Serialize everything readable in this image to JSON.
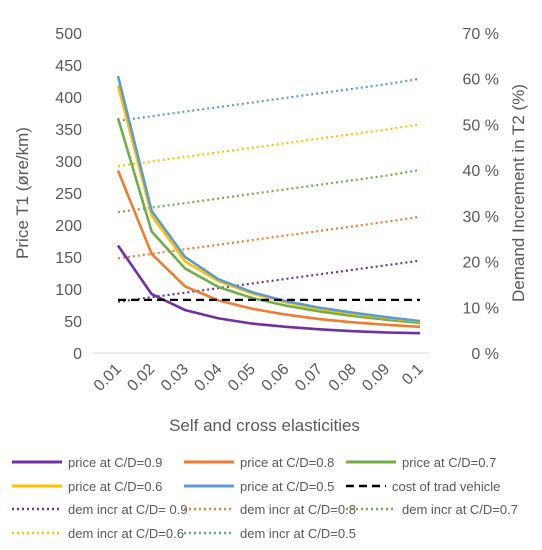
{
  "chart_data": {
    "type": "line",
    "x": [
      "0.01",
      "0.02",
      "0.03",
      "0.04",
      "0.05",
      "0.06",
      "0.07",
      "0.08",
      "0.09",
      "0.1"
    ],
    "xlabel": "Self and cross elasticities",
    "ylabel_left": "Price T1 (øre/km)",
    "ylabel_right": "Demand Increment in T2 (%)",
    "ylim_left": [
      0,
      500
    ],
    "ylim_right": [
      0,
      70
    ],
    "yticks_left": [
      "0",
      "50",
      "100",
      "150",
      "200",
      "250",
      "300",
      "350",
      "400",
      "450",
      "500"
    ],
    "yticks_right": [
      "0 %",
      "10 %",
      "20 %",
      "30 %",
      "40 %",
      "50 %",
      "60 %",
      "70 %"
    ],
    "grid": false,
    "legend_position": "bottom",
    "series": [
      {
        "name": "price at C/D=0.9",
        "axis": "left",
        "style": "solid",
        "color": "#7030A0",
        "values": [
          168,
          92,
          67,
          54,
          46,
          41,
          37,
          34,
          32,
          31
        ]
      },
      {
        "name": "price at C/D=0.8",
        "axis": "left",
        "style": "solid",
        "color": "#ED7D31",
        "values": [
          285,
          155,
          104,
          82,
          69,
          60,
          53,
          48,
          44,
          41
        ]
      },
      {
        "name": "price at C/D=0.7",
        "axis": "left",
        "style": "solid",
        "color": "#70AD47",
        "values": [
          367,
          190,
          132,
          103,
          86,
          74,
          65,
          58,
          52,
          47
        ]
      },
      {
        "name": "price at C/D=0.6",
        "axis": "left",
        "style": "solid",
        "color": "#FFC000",
        "values": [
          418,
          215,
          143,
          112,
          93,
          79,
          69,
          61,
          55,
          49
        ]
      },
      {
        "name": "price at C/D=0.5",
        "axis": "left",
        "style": "solid",
        "color": "#5B9BD5",
        "values": [
          433,
          222,
          150,
          115,
          95,
          81,
          71,
          63,
          56,
          50
        ]
      },
      {
        "name": "cost of trad vehicle",
        "axis": "left",
        "style": "dashed",
        "color": "#000000",
        "values": [
          83,
          83,
          83,
          83,
          83,
          83,
          83,
          83,
          83,
          83
        ]
      },
      {
        "name": "dem incr at C/D= 0.9",
        "axis": "right",
        "style": "dotted",
        "color": "#7030A0",
        "values": [
          11.2,
          12.2,
          13.2,
          14.2,
          15.2,
          16.2,
          17.2,
          18.2,
          19.2,
          20.2
        ]
      },
      {
        "name": "dem incr at C/D=0.8",
        "axis": "right",
        "style": "dotted",
        "color": "#ED7D31",
        "values": [
          20.7,
          21.7,
          22.7,
          23.7,
          24.7,
          25.7,
          26.7,
          27.7,
          28.7,
          29.8
        ]
      },
      {
        "name": "dem incr at C/D=0.7",
        "axis": "right",
        "style": "dotted",
        "color": "#70AD47",
        "values": [
          30.8,
          31.8,
          32.8,
          33.8,
          34.8,
          35.8,
          36.8,
          37.8,
          38.8,
          40.0
        ]
      },
      {
        "name": "dem incr at C/D=0.6",
        "axis": "right",
        "style": "dotted",
        "color": "#FFC000",
        "values": [
          40.9,
          41.9,
          42.9,
          43.9,
          44.9,
          45.9,
          46.9,
          47.9,
          48.9,
          50.0
        ]
      },
      {
        "name": "dem incr at C/D=0.5",
        "axis": "right",
        "style": "dotted",
        "color": "#5B9BD5",
        "values": [
          50.8,
          51.8,
          52.8,
          53.8,
          54.8,
          55.8,
          56.8,
          57.8,
          58.8,
          60.0
        ]
      }
    ]
  }
}
